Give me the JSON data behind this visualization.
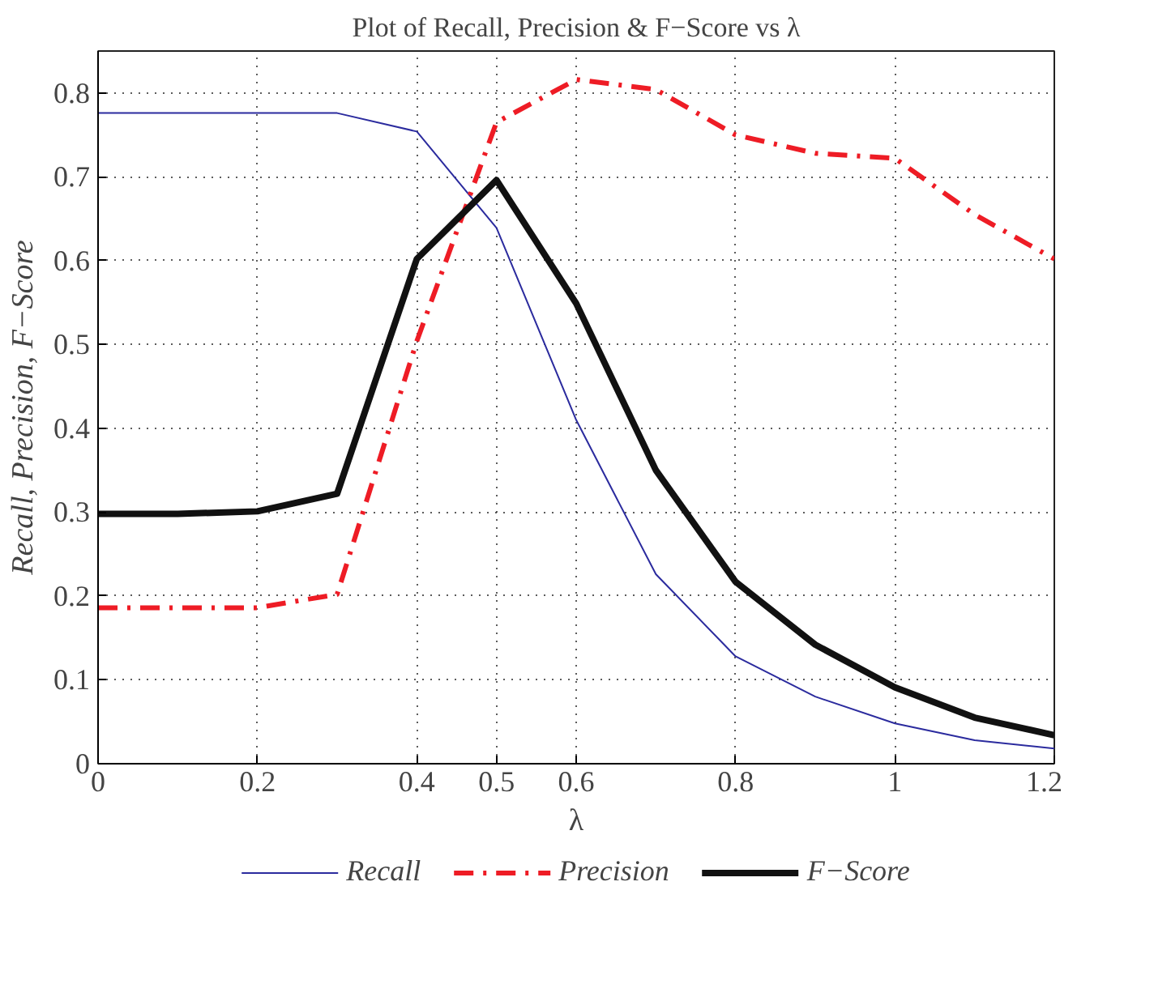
{
  "chart_data": {
    "type": "line",
    "title": "Plot of Recall, Precision & F−Score vs λ",
    "xlabel": "λ",
    "ylabel": "Recall, Precision, F−Score",
    "x": [
      0,
      0.1,
      0.2,
      0.3,
      0.4,
      0.5,
      0.6,
      0.7,
      0.8,
      0.9,
      1.0,
      1.1,
      1.2
    ],
    "series": [
      {
        "name": "Recall",
        "color": "#2b2b9e",
        "line_style": "solid",
        "values": [
          0.776,
          0.776,
          0.776,
          0.776,
          0.754,
          0.639,
          0.41,
          0.226,
          0.128,
          0.08,
          0.048,
          0.028,
          0.018
        ]
      },
      {
        "name": "Precision",
        "color": "#ee1c25",
        "line_style": "dashdot",
        "values": [
          0.186,
          0.186,
          0.186,
          0.202,
          0.504,
          0.765,
          0.816,
          0.804,
          0.75,
          0.728,
          0.722,
          0.655,
          0.602
        ]
      },
      {
        "name": "F−Score",
        "color": "#111111",
        "line_style": "solid",
        "values": [
          0.298,
          0.298,
          0.301,
          0.322,
          0.602,
          0.696,
          0.549,
          0.35,
          0.217,
          0.142,
          0.091,
          0.055,
          0.034
        ]
      }
    ],
    "xlim": [
      0,
      1.2
    ],
    "ylim": [
      0,
      0.85
    ],
    "xticks": [
      0,
      0.2,
      0.4,
      0.5,
      0.6,
      0.8,
      1,
      1.2
    ],
    "yticks": [
      0,
      0.1,
      0.2,
      0.3,
      0.4,
      0.5,
      0.6,
      0.7,
      0.8
    ],
    "grid": true,
    "legend": "bottom"
  }
}
